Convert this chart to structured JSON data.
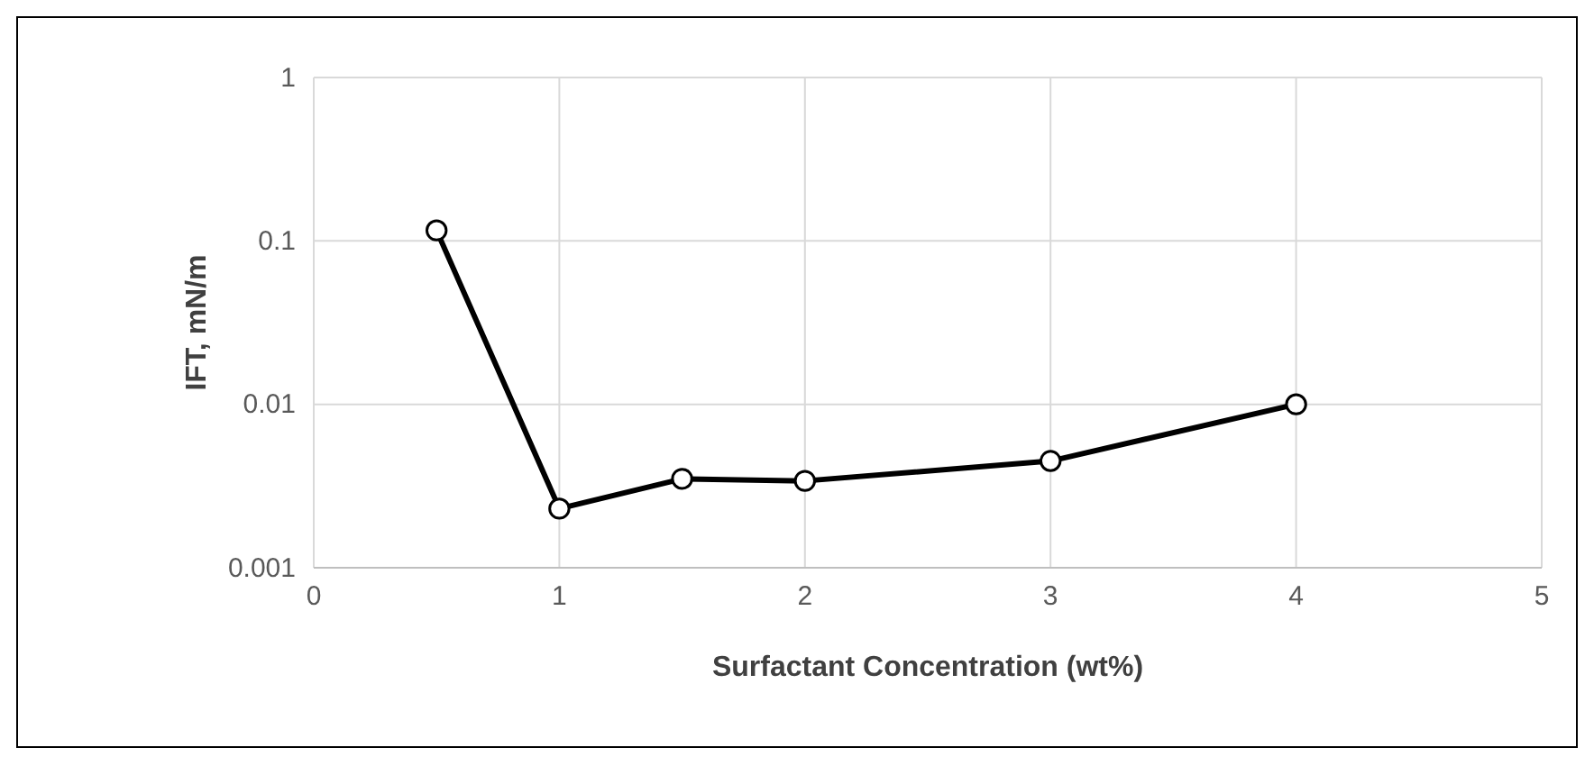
{
  "chart_data": {
    "type": "line",
    "xlabel": "Surfactant Concentration (wt%)",
    "ylabel": "IFT, mN/m",
    "x": [
      0.5,
      1,
      1.5,
      2,
      3,
      4
    ],
    "series": [
      {
        "color": "#000000",
        "values": [
          0.116,
          0.0023,
          0.0035,
          0.0034,
          0.0045,
          0.01
        ]
      }
    ],
    "xlim": [
      0,
      5
    ],
    "xticks": [
      0,
      1,
      2,
      3,
      4,
      5
    ],
    "ylim": [
      0.001,
      1
    ],
    "yticks": [
      0.001,
      0.01,
      0.1,
      1
    ],
    "log": "y",
    "grid": true,
    "marker": "circle",
    "line_style": "solid"
  }
}
